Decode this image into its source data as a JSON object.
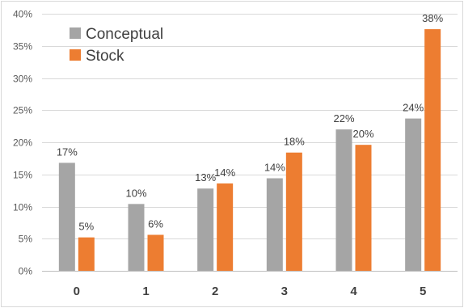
{
  "chart_data": {
    "type": "bar",
    "title": "",
    "xlabel": "",
    "ylabel": "",
    "categories": [
      "0",
      "1",
      "2",
      "3",
      "4",
      "5"
    ],
    "series": [
      {
        "name": "Conceptual",
        "color": "#a5a5a5",
        "values": [
          16.8,
          10.4,
          12.8,
          14.4,
          22.0,
          23.7
        ],
        "labels": [
          "17%",
          "10%",
          "13%",
          "14%",
          "22%",
          "24%"
        ]
      },
      {
        "name": "Stock",
        "color": "#ed7d31",
        "values": [
          5.2,
          5.6,
          13.6,
          18.4,
          19.6,
          37.6
        ],
        "labels": [
          "5%",
          "6%",
          "14%",
          "18%",
          "20%",
          "38%"
        ]
      }
    ],
    "ylim": [
      0,
      40
    ],
    "yticks": [
      0,
      5,
      10,
      15,
      20,
      25,
      30,
      35,
      40
    ],
    "ytick_labels": [
      "0%",
      "5%",
      "10%",
      "15%",
      "20%",
      "25%",
      "30%",
      "35%",
      "40%"
    ],
    "grid": true,
    "legend_position": "top-left"
  }
}
